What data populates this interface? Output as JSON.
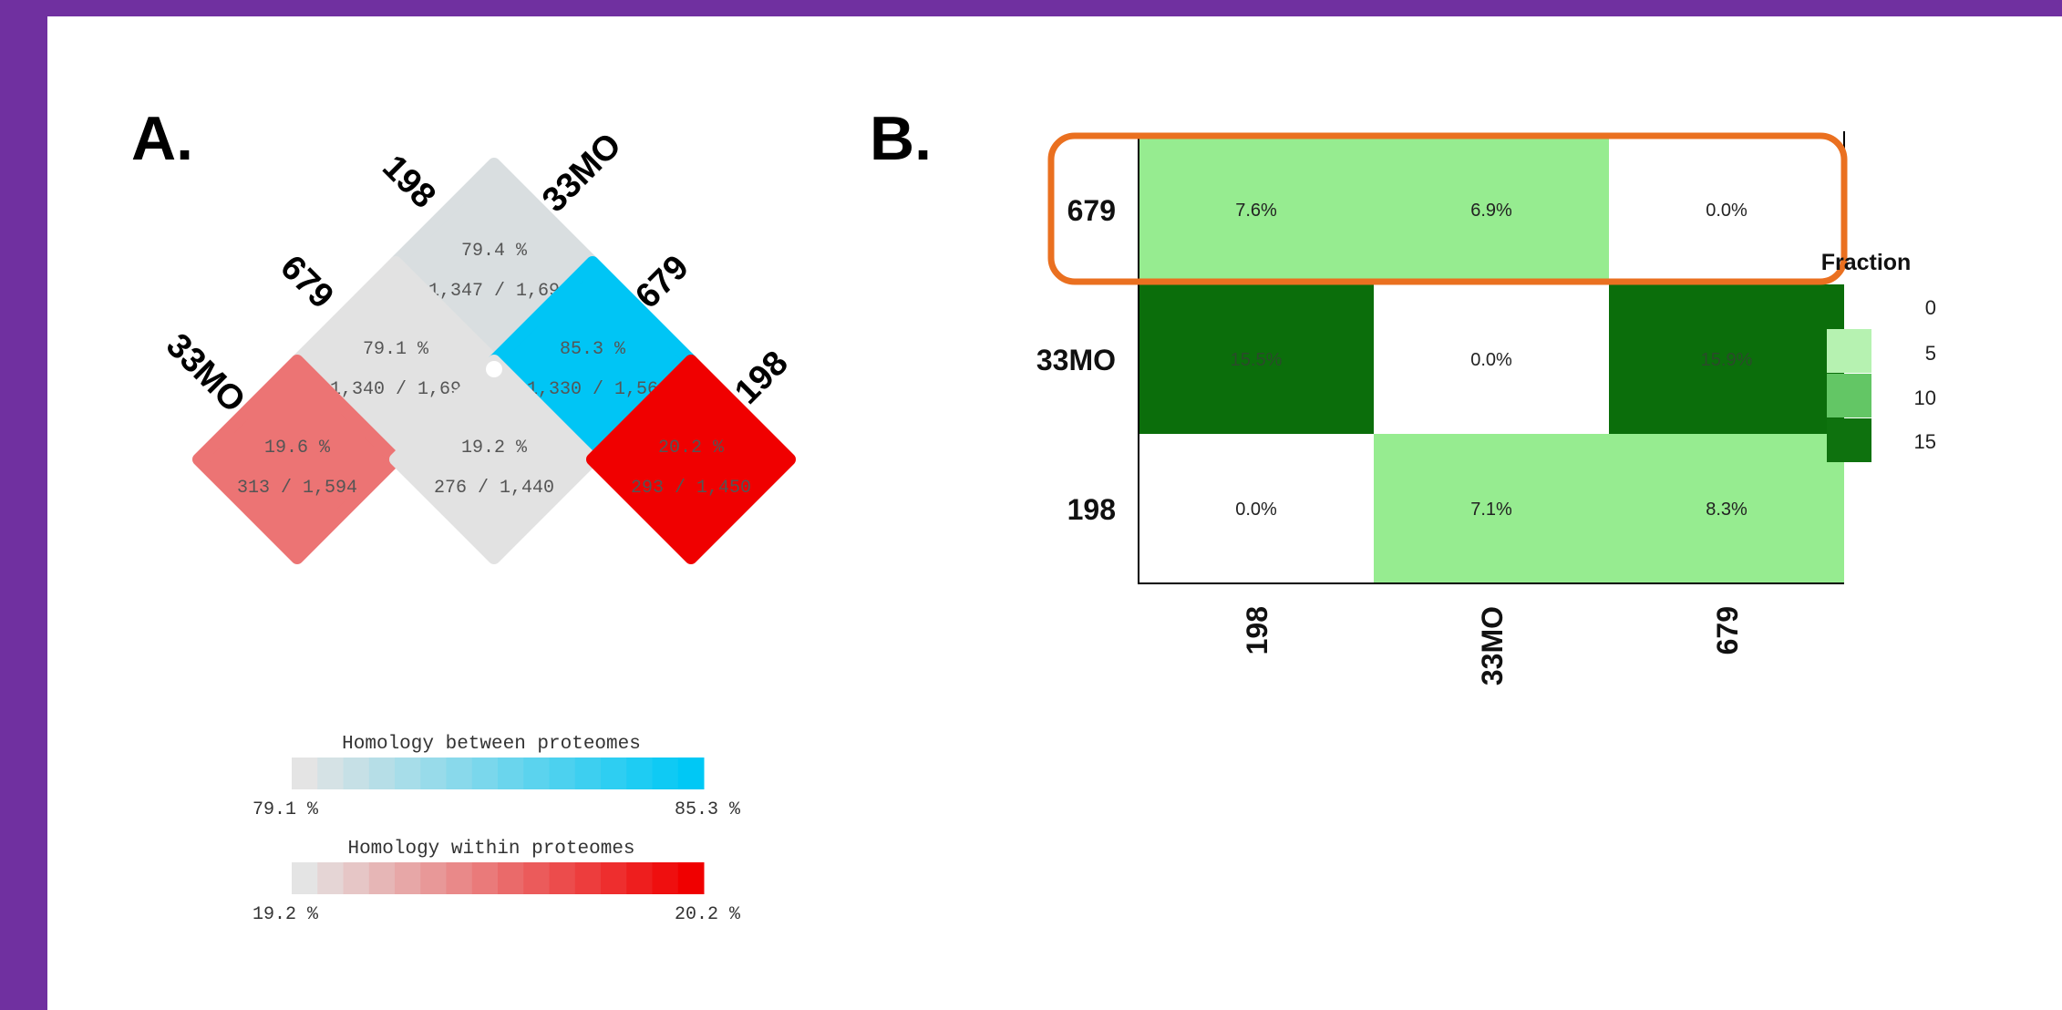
{
  "panel_a": {
    "label": "A.",
    "top_labels": {
      "left": "198",
      "right": "33MO"
    },
    "mid_labels": {
      "left": "679",
      "right": "679"
    },
    "bottom_labels": {
      "left": "33MO",
      "right": "198"
    },
    "cells": [
      {
        "id": "top",
        "pct": "79.4 %",
        "count": "1,347 / 1,69",
        "color": "#d9dee0"
      },
      {
        "id": "mid-left",
        "pct": "79.1 %",
        "count": "1,340 / 1,69",
        "color": "#e2e2e2"
      },
      {
        "id": "mid-right",
        "pct": "85.3 %",
        "count": "1,330 / 1,56",
        "color": "#00c5f5"
      },
      {
        "id": "bot-left",
        "pct": "19.6 %",
        "count": "313 / 1,594",
        "color": "#ec7474"
      },
      {
        "id": "bot-mid",
        "pct": "19.2 %",
        "count": "276 / 1,440",
        "color": "#e2e2e2"
      },
      {
        "id": "bot-right",
        "pct": "20.2 %",
        "count": "293 / 1,450",
        "color": "#f00000"
      }
    ],
    "legend_between": {
      "title": "Homology between proteomes",
      "min": "79.1 %",
      "max": "85.3 %",
      "color_min": "#e4e4e4",
      "color_max": "#00c8f5"
    },
    "legend_within": {
      "title": "Homology within proteomes",
      "min": "19.2 %",
      "max": "20.2 %",
      "color_min": "#e4e4e4",
      "color_max": "#f00000"
    }
  },
  "chart_data": {
    "label": "B.",
    "type": "heatmap",
    "x_categories": [
      "198",
      "33MO",
      "679"
    ],
    "y_categories": [
      "679",
      "33MO",
      "198"
    ],
    "values": [
      [
        7.6,
        6.9,
        0.0
      ],
      [
        15.5,
        0.0,
        15.9
      ],
      [
        0.0,
        7.1,
        8.3
      ]
    ],
    "value_labels": [
      [
        "7.6%",
        "6.9%",
        "0.0%"
      ],
      [
        "15.5%",
        "0.0%",
        "15.9%"
      ],
      [
        "0.0%",
        "7.1%",
        "8.3%"
      ]
    ],
    "legend": {
      "title": "Fraction",
      "ticks": [
        "0",
        "5",
        "10",
        "15"
      ]
    },
    "highlight": {
      "row": "679",
      "color": "#ea7020"
    }
  }
}
